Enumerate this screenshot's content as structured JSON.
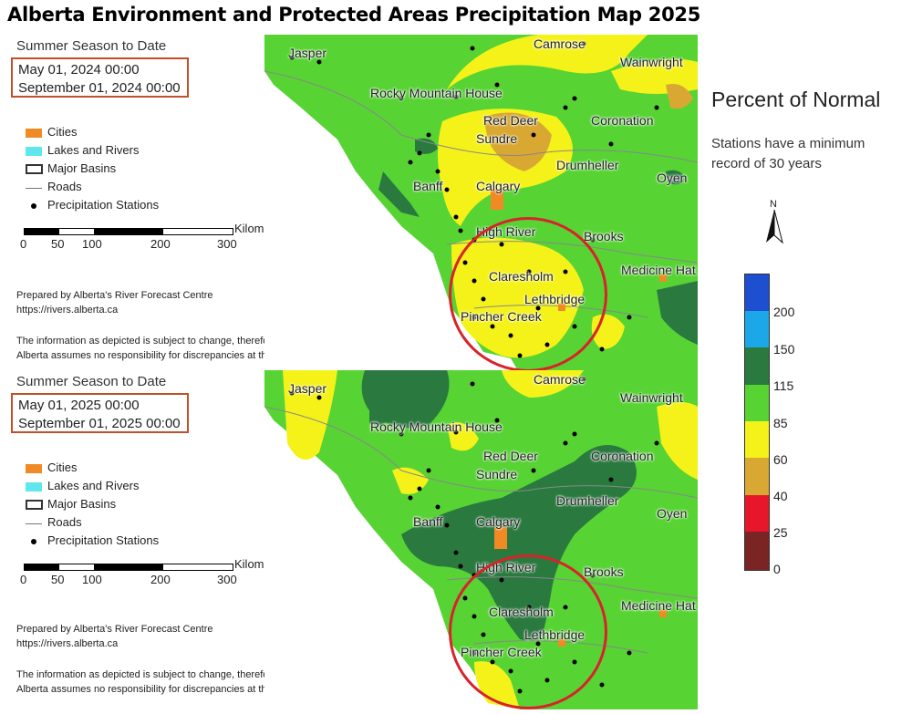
{
  "title": "Alberta Environment and Protected Areas Precipitation Map 2025",
  "panels": [
    {
      "season": "Summer Season to Date",
      "date_start": "May 01, 2024 00:00",
      "date_end": "September 01, 2024 00:00"
    },
    {
      "season": "Summer Season to Date",
      "date_start": "May 01, 2025 00:00",
      "date_end": "September 01, 2025 00:00"
    }
  ],
  "map_legend": {
    "cities": "Cities",
    "lakes": "Lakes and Rivers",
    "basins": "Major Basins",
    "roads": "Roads",
    "stations": "Precipitation Stations",
    "colors": {
      "cities": "#f08a24",
      "lakes": "#5fe7ee"
    }
  },
  "scale": {
    "unit": "Kilometers",
    "ticks": [
      "0",
      "50",
      "100",
      "200",
      "300"
    ]
  },
  "credit": {
    "prepared_by": "Prepared by Alberta's River Forecast Centre",
    "url": "https://rivers.alberta.ca",
    "disclaimer_1": "The information as depicted is subject to change, therefore the Government of",
    "disclaimer_2": "Alberta assumes no responsibility for discrepancies at the time of use."
  },
  "places": {
    "jasper": "Jasper",
    "camrose": "Camrose",
    "wainwright": "Wainwright",
    "rocky": "Rocky Mountain House",
    "reddeer": "Red Deer",
    "coronation": "Coronation",
    "sundre": "Sundre",
    "drumheller": "Drumheller",
    "banff": "Banff",
    "calgary": "Calgary",
    "oyen": "Oyen",
    "highriver": "High River",
    "brooks": "Brooks",
    "medhat": "Medicine Hat",
    "claresholm": "Claresholm",
    "lethbridge": "Lethbridge",
    "pincher": "Pincher Creek"
  },
  "percent_legend": {
    "title": "Percent of Normal",
    "note_1": "Stations have a minimum",
    "note_2": "record of 30 years",
    "north": "N",
    "classes": [
      {
        "label": "200",
        "color": "#1f4fd1"
      },
      {
        "label": "150",
        "color": "#1ca7e8"
      },
      {
        "label": "115",
        "color": "#2a7a3f"
      },
      {
        "label": "85",
        "color": "#57d334"
      },
      {
        "label": "60",
        "color": "#f5f21a"
      },
      {
        "label": "40",
        "color": "#d9a832"
      },
      {
        "label": "25",
        "color": "#e8162b"
      },
      {
        "label": "0",
        "color": "#7b2424"
      }
    ]
  }
}
